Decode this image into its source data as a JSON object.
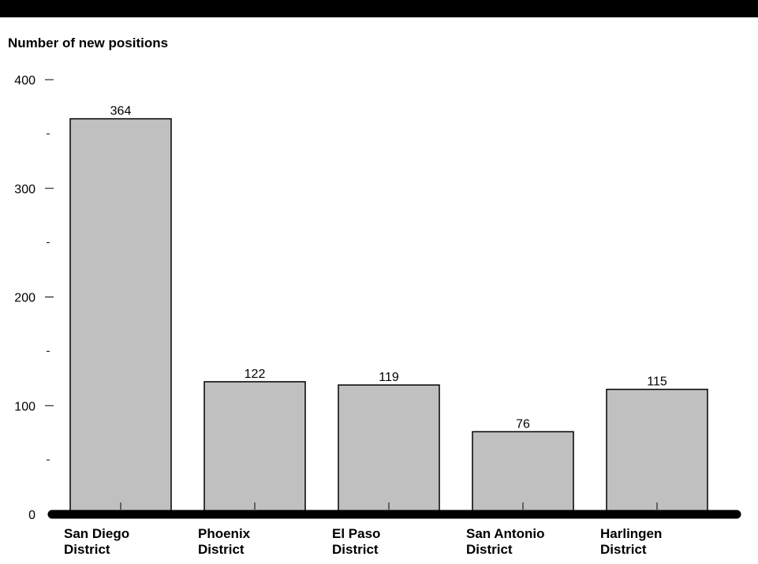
{
  "chart_data": {
    "type": "bar",
    "title": "",
    "ylabel": "Number of new positions",
    "xlabel": "",
    "ylim": [
      0,
      400
    ],
    "yticks": [
      "0",
      "100",
      "200",
      "300",
      "400"
    ],
    "categories": [
      [
        "San Diego",
        "District"
      ],
      [
        "Phoenix",
        "District"
      ],
      [
        "El Paso",
        "District"
      ],
      [
        "San Antonio",
        "District"
      ],
      [
        "Harlingen",
        "District"
      ]
    ],
    "values": [
      364,
      122,
      119,
      76,
      115
    ],
    "data_labels": [
      "364",
      "122",
      "119",
      "76",
      "115"
    ],
    "grid": false,
    "colors": {
      "bar_fill": "#c0c0c0",
      "bar_stroke": "#000000",
      "header_band": "#000000",
      "axis": "#000000"
    }
  }
}
